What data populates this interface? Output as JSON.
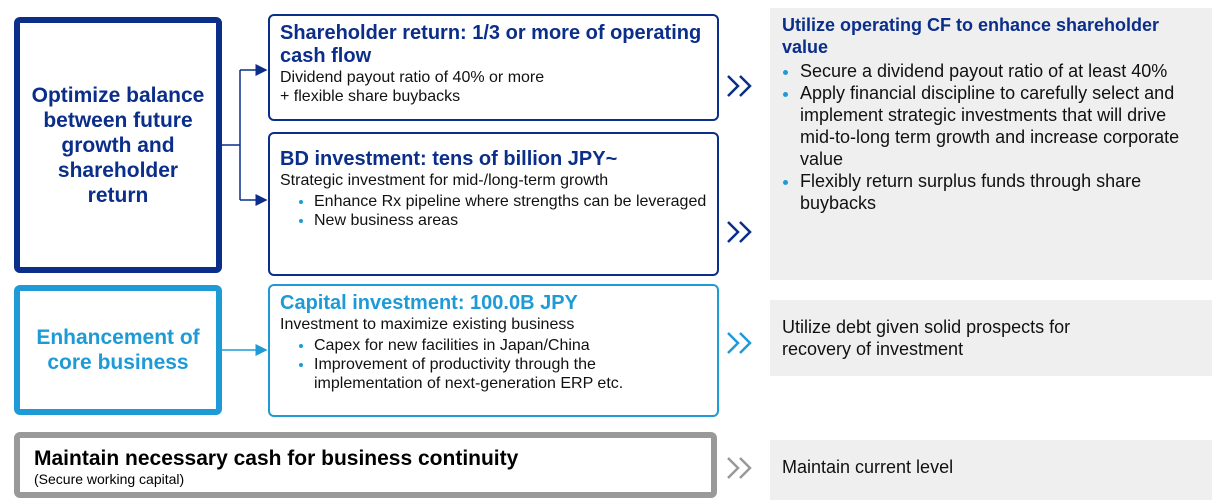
{
  "left_boxes": [
    {
      "text": "Optimize balance between future growth and shareholder return"
    },
    {
      "text": "Enhancement of core business"
    }
  ],
  "bottom_box": {
    "title": "Maintain necessary cash for business continuity",
    "subtitle": "(Secure working capital)"
  },
  "middle_boxes": [
    {
      "title": "Shareholder return: 1/3 or more of operating cash flow",
      "lines": [
        "Dividend payout ratio of 40% or more",
        "+ flexible share buybacks"
      ],
      "bullets": []
    },
    {
      "title": "BD investment: tens of billion JPY~",
      "lines": [
        "Strategic investment for mid-/long-term growth"
      ],
      "bullets": [
        "Enhance  Rx pipeline where strengths can be leveraged",
        "New business areas"
      ]
    },
    {
      "title": "Capital investment: 100.0B JPY",
      "lines": [
        "Investment to maximize existing business"
      ],
      "bullets": [
        "Capex for new facilities in Japan/China",
        "Improvement of productivity through the implementation of next-generation ERP etc."
      ]
    }
  ],
  "right_panels": [
    {
      "title": "Utilize operating CF to enhance shareholder value",
      "bullets": [
        "Secure a dividend payout ratio of at least 40%",
        "Apply financial discipline to carefully select and implement strategic investments that will drive mid-to-long term growth and increase corporate value",
        "Flexibly return surplus funds through share buybacks"
      ]
    },
    {
      "text": "Utilize debt given solid prospects for recovery of investment"
    },
    {
      "text": "Maintain current level"
    }
  ]
}
